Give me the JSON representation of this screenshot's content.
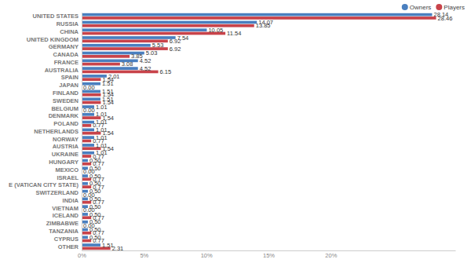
{
  "chart_data": {
    "type": "bar",
    "orientation": "horizontal",
    "data_labels": true,
    "grid": false,
    "legend": "top-right",
    "categories": [
      "UNITED STATES",
      "RUSSIA",
      "CHINA",
      "UNITED KINGDOM",
      "GERMANY",
      "CANADA",
      "FRANCE",
      "AUSTRALIA",
      "SPAIN",
      "JAPAN",
      "FINLAND",
      "SWEDEN",
      "BELGIUM",
      "DENMARK",
      "POLAND",
      "NETHERLANDS",
      "NORWAY",
      "AUSTRIA",
      "UKRAINE",
      "HUNGARY",
      "MEXICO",
      "ISRAEL",
      "E (VATICAN CITY STATE)",
      "SWITZERLAND",
      "INDIA",
      "VIETNAM",
      "ICELAND",
      "ZIMBABWE",
      "TANZANIA",
      "CYPRUS",
      "OTHER"
    ],
    "series": [
      {
        "name": "Owners",
        "color": "#4a7fbf",
        "values": [
          28.14,
          14.07,
          10.05,
          7.54,
          5.53,
          5.03,
          4.52,
          4.52,
          2.01,
          1.51,
          1.51,
          1.51,
          1.01,
          1.01,
          1.01,
          1.01,
          1.01,
          1.01,
          1.01,
          0.5,
          0.5,
          0.5,
          0.5,
          0.5,
          0.5,
          0.5,
          0.5,
          0.5,
          0.5,
          0.5,
          1.51
        ],
        "value_labels": [
          "28.14",
          "14.07",
          "10.05",
          "7.54",
          "5.53",
          "5.03",
          "4.52",
          "4.52",
          "2.01",
          "1.51",
          "1.51",
          "1.51",
          "1.01",
          "1.01",
          "1.01",
          "1.01",
          "1.01",
          "1.01",
          "1.01",
          "0.50",
          "0.50",
          "0.50",
          "0.50",
          "0.50",
          "0.50",
          "0.50",
          "0.50",
          "0.50",
          "0.50",
          "0.50",
          "1.51"
        ]
      },
      {
        "name": "Players",
        "color": "#c8434a",
        "values": [
          28.46,
          13.85,
          11.54,
          6.92,
          6.92,
          3.85,
          3.08,
          6.15,
          1.54,
          0,
          1.54,
          1.54,
          0,
          1.54,
          0.77,
          1.54,
          0.77,
          1.54,
          0.77,
          0.77,
          0,
          0.77,
          0.77,
          0,
          0.77,
          0,
          0.77,
          0,
          0.77,
          0.77,
          2.31
        ],
        "value_labels": [
          "28.46",
          "13.85",
          "11.54",
          "6.92",
          "6.92",
          "3.85",
          "3.08",
          "6.15",
          "1.54",
          "0.00",
          "1.54",
          "1.54",
          "0.00",
          "1.54",
          "0.77",
          "1.54",
          "0.77",
          "1.54",
          "0.77",
          "0.77",
          "0.00",
          "0.77",
          "0.77",
          "0.00",
          "0.77",
          "0.00",
          "0.77",
          "0.00",
          "0.77",
          "0.77",
          "2.31"
        ]
      }
    ],
    "xlim": [
      0,
      30
    ],
    "xticks": [
      {
        "value": 0,
        "label": "0%"
      },
      {
        "value": 5,
        "label": "5%"
      },
      {
        "value": 10,
        "label": "10%"
      },
      {
        "value": 15,
        "label": "15%"
      },
      {
        "value": 20,
        "label": "20%"
      }
    ]
  }
}
